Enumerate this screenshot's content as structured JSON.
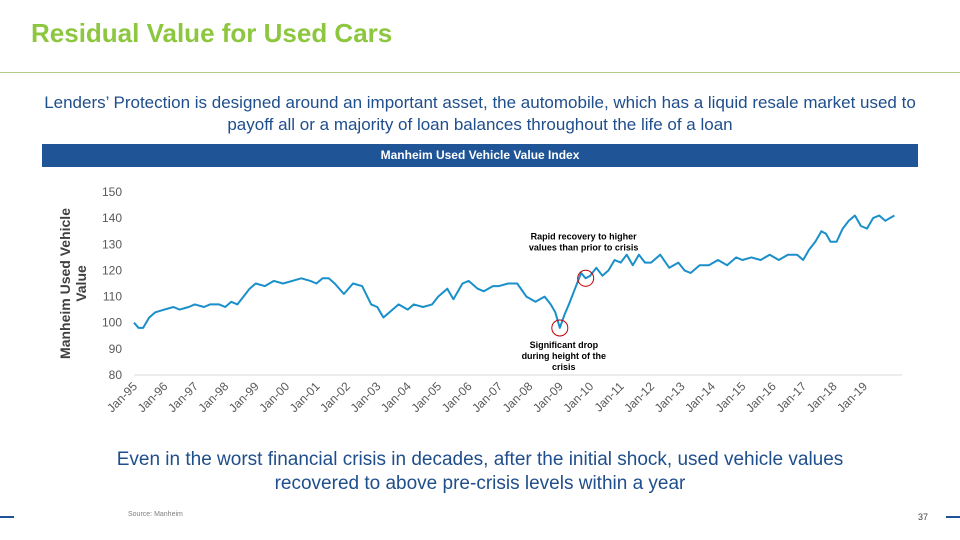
{
  "slide": {
    "title": "Residual Value for Used Cars",
    "intro": "Lenders’ Protection is designed around an important asset, the automobile, which has a liquid resale market used to payoff all or a majority of loan balances throughout the life of a loan",
    "banner": "Manheim Used Vehicle Value Index",
    "conclusion": "Even in the worst financial crisis in decades, after the initial shock, used vehicle values recovered to above pre-crisis levels within a year",
    "source": "Source: Manheim",
    "page_number": "37"
  },
  "colors": {
    "title": "#8dc63f",
    "accent_blue": "#1f5596",
    "text_blue": "#1f4e8c",
    "series_line": "#1a8fc9",
    "annotation_circle": "#c00000"
  },
  "chart_data": {
    "type": "line",
    "title": "Manheim Used Vehicle Value Index",
    "ylabel": "Manheim Used Vehicle Value",
    "xlabel": "",
    "ylim": [
      80,
      150
    ],
    "yticks": [
      80,
      90,
      100,
      110,
      120,
      130,
      140,
      150
    ],
    "xlim": [
      1995.0,
      2020.25
    ],
    "xtick_labels": [
      "Jan-95",
      "Jan-96",
      "Jan-97",
      "Jan-98",
      "Jan-99",
      "Jan-00",
      "Jan-01",
      "Jan-02",
      "Jan-03",
      "Jan-04",
      "Jan-05",
      "Jan-06",
      "Jan-07",
      "Jan-08",
      "Jan-09",
      "Jan-10",
      "Jan-11",
      "Jan-12",
      "Jan-13",
      "Jan-14",
      "Jan-15",
      "Jan-16",
      "Jan-17",
      "Jan-18",
      "Jan-19"
    ],
    "grid": false,
    "legend": "none",
    "series": [
      {
        "x": [
          1995.0,
          1995.15,
          1995.3,
          1995.5,
          1995.7,
          1996.0,
          1996.3,
          1996.5,
          1996.8,
          1997.0,
          1997.3,
          1997.5,
          1997.8,
          1998.0,
          1998.2,
          1998.4,
          1998.6,
          1998.8,
          1999.0,
          1999.3,
          1999.6,
          1999.9,
          2000.2,
          2000.5,
          2000.8,
          2001.0,
          2001.2,
          2001.4,
          2001.6,
          2001.9,
          2002.2,
          2002.5,
          2002.8,
          2003.0,
          2003.2,
          2003.4,
          2003.7,
          2004.0,
          2004.2,
          2004.5,
          2004.8,
          2005.0,
          2005.3,
          2005.5,
          2005.8,
          2006.0,
          2006.3,
          2006.5,
          2006.8,
          2007.0,
          2007.3,
          2007.6,
          2007.9,
          2008.2,
          2008.5,
          2008.7,
          2008.85,
          2009.0,
          2009.15,
          2009.3,
          2009.5,
          2009.7,
          2009.85,
          2010.0,
          2010.2,
          2010.4,
          2010.6,
          2010.8,
          2011.0,
          2011.2,
          2011.4,
          2011.6,
          2011.8,
          2012.0,
          2012.3,
          2012.6,
          2012.9,
          2013.1,
          2013.3,
          2013.6,
          2013.9,
          2014.2,
          2014.5,
          2014.8,
          2015.0,
          2015.3,
          2015.6,
          2015.9,
          2016.2,
          2016.5,
          2016.8,
          2017.0,
          2017.2,
          2017.4,
          2017.6,
          2017.75,
          2017.9,
          2018.1,
          2018.3,
          2018.5,
          2018.7,
          2018.9,
          2019.1,
          2019.3,
          2019.5,
          2019.7,
          2019.85,
          2020.0
        ],
        "values": [
          100,
          98,
          98,
          102,
          104,
          105,
          106,
          105,
          106,
          107,
          106,
          107,
          107,
          106,
          108,
          107,
          110,
          113,
          115,
          114,
          116,
          115,
          116,
          117,
          116,
          115,
          117,
          117,
          115,
          111,
          115,
          114,
          107,
          106,
          102,
          104,
          107,
          105,
          107,
          106,
          107,
          110,
          113,
          109,
          115,
          116,
          113,
          112,
          114,
          114,
          115,
          115,
          110,
          108,
          110,
          107,
          104,
          98,
          103,
          107,
          113,
          119,
          117,
          118,
          121,
          118,
          120,
          124,
          123,
          126,
          122,
          126,
          123,
          123,
          126,
          121,
          123,
          120,
          119,
          122,
          122,
          124,
          122,
          125,
          124,
          125,
          124,
          126,
          124,
          126,
          126,
          124,
          128,
          131,
          135,
          134,
          131,
          131,
          136,
          139,
          141,
          137,
          136,
          140,
          141,
          139,
          140,
          141
        ]
      }
    ],
    "annotations": [
      {
        "text": [
          "Rapid recovery to higher",
          "values than prior to crisis"
        ],
        "x": 2009.85,
        "y": 117
      },
      {
        "text": [
          "Significant drop",
          "during height of the",
          "crisis"
        ],
        "x": 2009.0,
        "y": 98
      }
    ]
  }
}
